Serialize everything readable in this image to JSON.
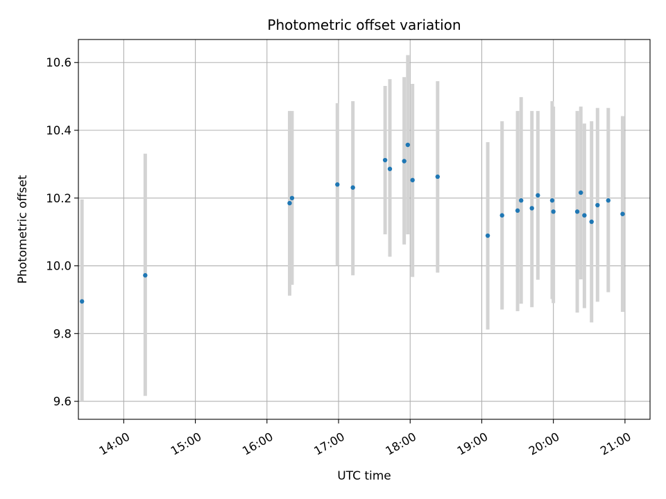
{
  "chart_data": {
    "type": "scatter",
    "title": "Photometric offset variation",
    "xlabel": "UTC time",
    "ylabel": "Photometric offset",
    "xlim": [
      "13:22",
      "21:21"
    ],
    "ylim": [
      9.547,
      10.668
    ],
    "x_ticks": [
      "14:00",
      "15:00",
      "16:00",
      "17:00",
      "18:00",
      "19:00",
      "20:00",
      "21:00"
    ],
    "y_ticks": [
      "9.6",
      "9.8",
      "10.0",
      "10.2",
      "10.4",
      "10.6"
    ],
    "grid": true,
    "marker_color": "#1f77b4",
    "errorbar_color": "#d3d3d3",
    "points": [
      {
        "time": "13:25",
        "value": 9.895,
        "low": 9.6,
        "high": 10.196
      },
      {
        "time": "14:18",
        "value": 9.972,
        "low": 9.616,
        "high": 10.331
      },
      {
        "time": "16:19",
        "value": 10.185,
        "low": 9.912,
        "high": 10.457
      },
      {
        "time": "16:21",
        "value": 10.2,
        "low": 9.944,
        "high": 10.457
      },
      {
        "time": "16:59",
        "value": 10.24,
        "low": 10.0,
        "high": 10.48
      },
      {
        "time": "17:12",
        "value": 10.231,
        "low": 9.972,
        "high": 10.486
      },
      {
        "time": "17:39",
        "value": 10.312,
        "low": 10.093,
        "high": 10.531
      },
      {
        "time": "17:43",
        "value": 10.286,
        "low": 10.027,
        "high": 10.551
      },
      {
        "time": "17:55",
        "value": 10.309,
        "low": 10.063,
        "high": 10.557
      },
      {
        "time": "17:58",
        "value": 10.357,
        "low": 10.093,
        "high": 10.622
      },
      {
        "time": "18:02",
        "value": 10.253,
        "low": 9.967,
        "high": 10.537
      },
      {
        "time": "18:23",
        "value": 10.263,
        "low": 9.98,
        "high": 10.545
      },
      {
        "time": "19:05",
        "value": 10.089,
        "low": 9.812,
        "high": 10.365
      },
      {
        "time": "19:17",
        "value": 10.149,
        "low": 9.871,
        "high": 10.427
      },
      {
        "time": "19:30",
        "value": 10.163,
        "low": 9.866,
        "high": 10.457
      },
      {
        "time": "19:33",
        "value": 10.193,
        "low": 9.888,
        "high": 10.498
      },
      {
        "time": "19:42",
        "value": 10.17,
        "low": 9.878,
        "high": 10.457
      },
      {
        "time": "19:47",
        "value": 10.208,
        "low": 9.959,
        "high": 10.457
      },
      {
        "time": "19:59",
        "value": 10.193,
        "low": 9.902,
        "high": 10.486
      },
      {
        "time": "20:00",
        "value": 10.16,
        "low": 9.89,
        "high": 10.47
      },
      {
        "time": "20:20",
        "value": 10.16,
        "low": 9.862,
        "high": 10.457
      },
      {
        "time": "20:23",
        "value": 10.216,
        "low": 9.96,
        "high": 10.47
      },
      {
        "time": "20:26",
        "value": 10.149,
        "low": 9.875,
        "high": 10.42
      },
      {
        "time": "20:32",
        "value": 10.13,
        "low": 9.833,
        "high": 10.427
      },
      {
        "time": "20:37",
        "value": 10.179,
        "low": 9.894,
        "high": 10.466
      },
      {
        "time": "20:46",
        "value": 10.193,
        "low": 9.922,
        "high": 10.466
      },
      {
        "time": "20:58",
        "value": 10.153,
        "low": 9.864,
        "high": 10.442
      }
    ]
  }
}
